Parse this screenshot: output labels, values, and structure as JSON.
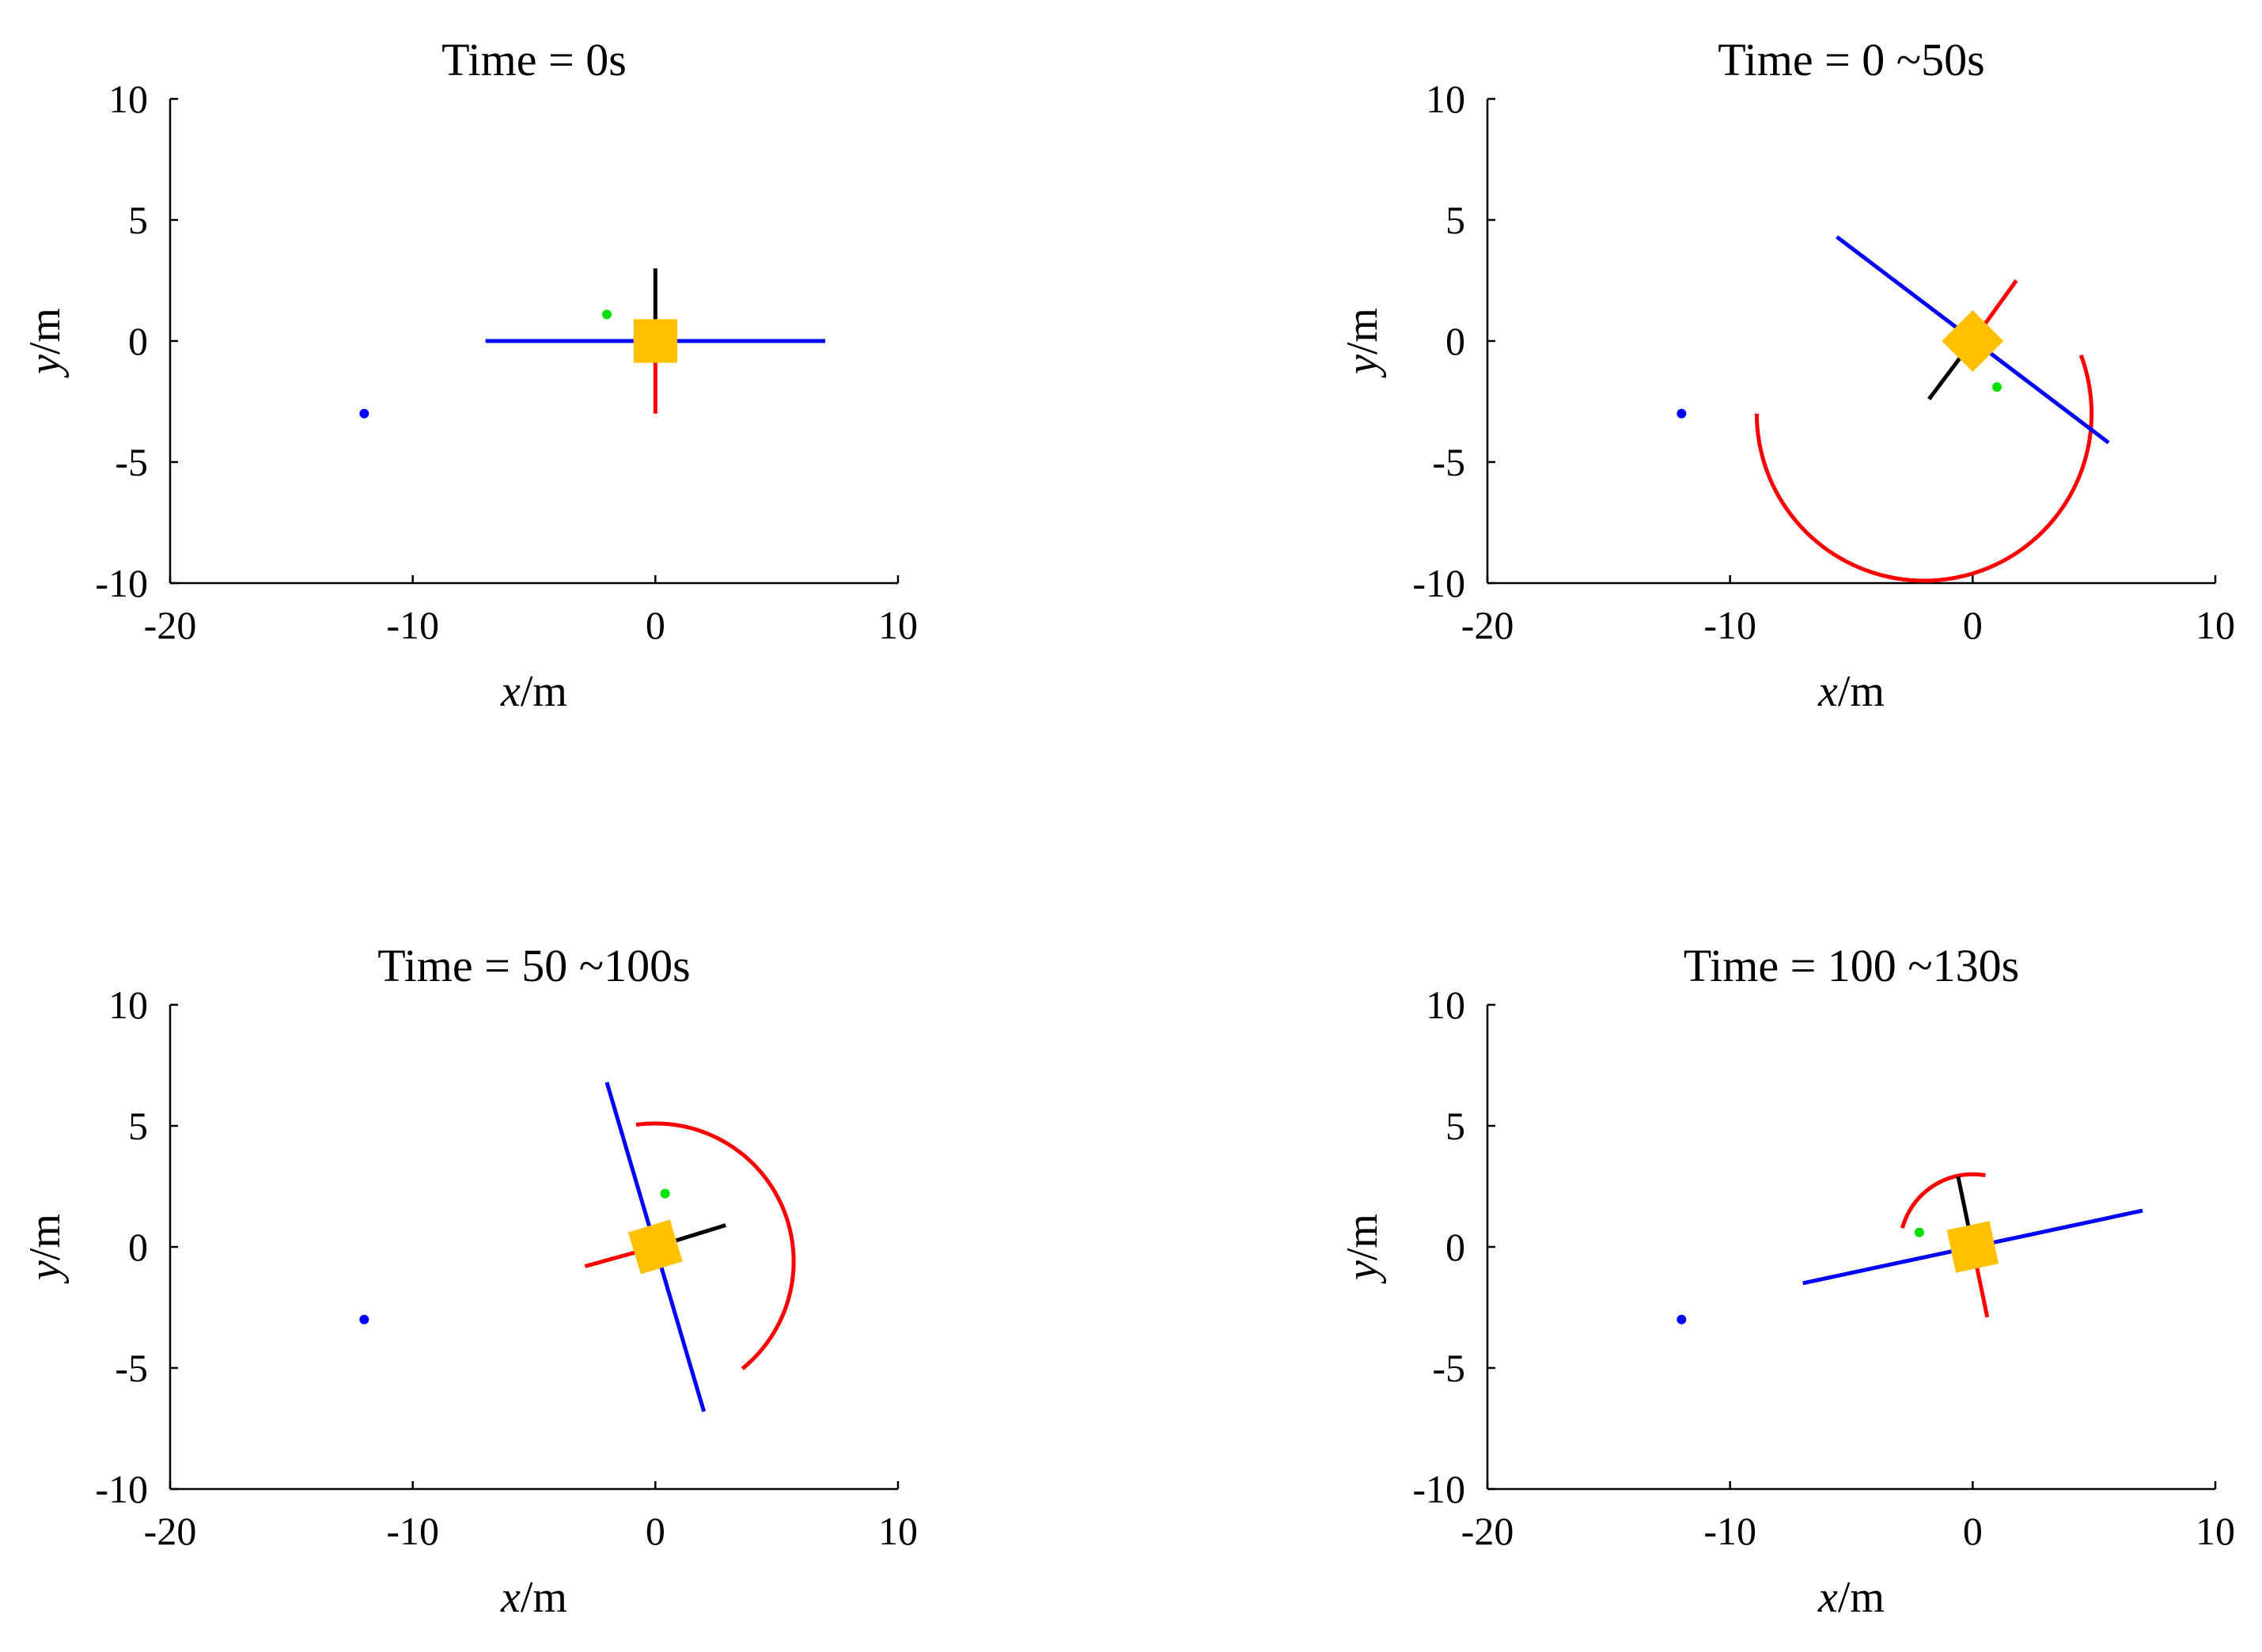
{
  "chart_data": [
    {
      "type": "line",
      "title": "Time = 0s",
      "xlabel_var": "x",
      "xlabel_unit": "/m",
      "ylabel_var": "y",
      "ylabel_unit": "/m",
      "xlim": [
        -20,
        10
      ],
      "ylim": [
        -10,
        10
      ],
      "xticks": [
        -20,
        -10,
        0,
        10
      ],
      "yticks": [
        -10,
        -5,
        0,
        5,
        10
      ],
      "series": [
        {
          "name": "blue-beam",
          "color": "#0000ff",
          "kind": "line",
          "points": [
            [
              -7,
              0
            ],
            [
              7,
              0
            ]
          ]
        },
        {
          "name": "black-arm",
          "color": "#000000",
          "kind": "line",
          "points": [
            [
              0,
              0
            ],
            [
              0,
              3
            ]
          ]
        },
        {
          "name": "red-arm",
          "color": "#ff0000",
          "kind": "line",
          "points": [
            [
              0,
              0
            ],
            [
              0,
              -3
            ]
          ]
        },
        {
          "name": "yellow-body",
          "color": "#ffc000",
          "kind": "square",
          "center": [
            0,
            0
          ],
          "side": 1.8,
          "angle_deg": 0
        },
        {
          "name": "green-marker",
          "color": "#00e000",
          "kind": "point",
          "points": [
            [
              -2.0,
              1.1
            ]
          ]
        },
        {
          "name": "blue-marker",
          "color": "#0000ff",
          "kind": "point",
          "points": [
            [
              -12,
              -3
            ]
          ]
        }
      ]
    },
    {
      "type": "line",
      "title": "Time = 0 ~50s",
      "xlabel_var": "x",
      "xlabel_unit": "/m",
      "ylabel_var": "y",
      "ylabel_unit": "/m",
      "xlim": [
        -20,
        10
      ],
      "ylim": [
        -10,
        10
      ],
      "xticks": [
        -20,
        -10,
        0,
        10
      ],
      "yticks": [
        -10,
        -5,
        0,
        5,
        10
      ],
      "series": [
        {
          "name": "red-trajectory",
          "color": "#ff0000",
          "kind": "arc",
          "center": [
            -2,
            -3
          ],
          "radius": 6.9,
          "start_deg": 180,
          "end_deg": 380.5
        },
        {
          "name": "blue-beam",
          "color": "#0000ff",
          "kind": "line",
          "points": [
            [
              -5.6,
              4.3
            ],
            [
              5.6,
              -4.2
            ]
          ]
        },
        {
          "name": "black-arm",
          "color": "#000000",
          "kind": "line",
          "points": [
            [
              0,
              0
            ],
            [
              -1.8,
              -2.4
            ]
          ]
        },
        {
          "name": "red-arm",
          "color": "#ff0000",
          "kind": "line",
          "points": [
            [
              0,
              0
            ],
            [
              1.8,
              2.5
            ]
          ]
        },
        {
          "name": "yellow-body",
          "color": "#ffc000",
          "kind": "square",
          "center": [
            0,
            0
          ],
          "side": 1.8,
          "angle_deg": 45
        },
        {
          "name": "green-marker",
          "color": "#00e000",
          "kind": "point",
          "points": [
            [
              1.0,
              -1.9
            ]
          ]
        },
        {
          "name": "blue-marker",
          "color": "#0000ff",
          "kind": "point",
          "points": [
            [
              -12,
              -3
            ]
          ]
        }
      ]
    },
    {
      "type": "line",
      "title": "Time = 50 ~100s",
      "xlabel_var": "x",
      "xlabel_unit": "/m",
      "ylabel_var": "y",
      "ylabel_unit": "/m",
      "xlim": [
        -20,
        10
      ],
      "ylim": [
        -10,
        10
      ],
      "xticks": [
        -20,
        -10,
        0,
        10
      ],
      "yticks": [
        -10,
        -5,
        0,
        5,
        10
      ],
      "series": [
        {
          "name": "red-trajectory",
          "color": "#ff0000",
          "kind": "arc",
          "center": [
            0,
            -0.6
          ],
          "radius": 5.7,
          "start_deg": 98,
          "end_deg": -51
        },
        {
          "name": "blue-beam",
          "color": "#0000ff",
          "kind": "line",
          "points": [
            [
              -2.0,
              6.8
            ],
            [
              2.0,
              -6.8
            ]
          ]
        },
        {
          "name": "black-arm",
          "color": "#000000",
          "kind": "line",
          "points": [
            [
              0,
              0
            ],
            [
              2.9,
              0.9
            ]
          ]
        },
        {
          "name": "red-arm",
          "color": "#ff0000",
          "kind": "line",
          "points": [
            [
              0,
              0
            ],
            [
              -2.9,
              -0.8
            ]
          ]
        },
        {
          "name": "yellow-body",
          "color": "#ffc000",
          "kind": "square",
          "center": [
            0,
            0
          ],
          "side": 1.8,
          "angle_deg": 17
        },
        {
          "name": "green-marker",
          "color": "#00e000",
          "kind": "point",
          "points": [
            [
              0.4,
              2.2
            ]
          ]
        },
        {
          "name": "blue-marker",
          "color": "#0000ff",
          "kind": "point",
          "points": [
            [
              -12,
              -3
            ]
          ]
        }
      ]
    },
    {
      "type": "line",
      "title": "Time = 100 ~130s",
      "xlabel_var": "x",
      "xlabel_unit": "/m",
      "ylabel_var": "y",
      "ylabel_unit": "/m",
      "xlim": [
        -20,
        10
      ],
      "ylim": [
        -10,
        10
      ],
      "xticks": [
        -20,
        -10,
        0,
        10
      ],
      "yticks": [
        -10,
        -5,
        0,
        5,
        10
      ],
      "series": [
        {
          "name": "red-trajectory",
          "color": "#ff0000",
          "kind": "arc",
          "center": [
            0,
            0
          ],
          "radius": 3.0,
          "start_deg": 80,
          "end_deg": 165
        },
        {
          "name": "blue-beam",
          "color": "#0000ff",
          "kind": "line",
          "points": [
            [
              -7,
              -1.5
            ],
            [
              7,
              1.5
            ]
          ]
        },
        {
          "name": "black-arm",
          "color": "#000000",
          "kind": "line",
          "points": [
            [
              0,
              0
            ],
            [
              -0.6,
              2.9
            ]
          ]
        },
        {
          "name": "red-arm",
          "color": "#ff0000",
          "kind": "line",
          "points": [
            [
              0,
              0
            ],
            [
              0.6,
              -2.9
            ]
          ]
        },
        {
          "name": "yellow-body",
          "color": "#ffc000",
          "kind": "square",
          "center": [
            0,
            0
          ],
          "side": 1.8,
          "angle_deg": 12
        },
        {
          "name": "green-marker",
          "color": "#00e000",
          "kind": "point",
          "points": [
            [
              -2.2,
              0.6
            ]
          ]
        },
        {
          "name": "blue-marker",
          "color": "#0000ff",
          "kind": "point",
          "points": [
            [
              -12,
              -3
            ]
          ]
        }
      ]
    }
  ]
}
